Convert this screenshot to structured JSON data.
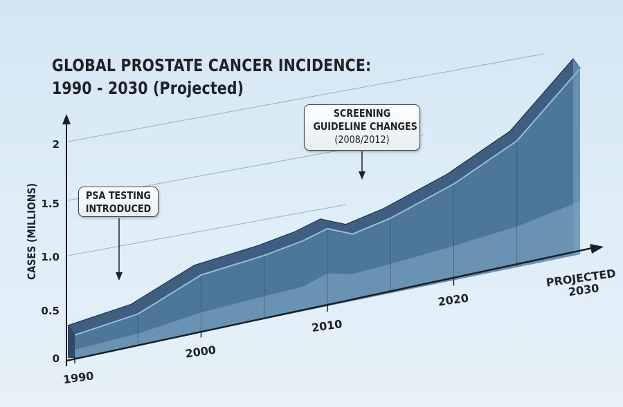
{
  "chart_data": {
    "type": "area",
    "title": "GLOBAL PROSTATE CANCER INCIDENCE:",
    "subtitle": "1990 - 2030 (Projected)",
    "ylabel": "CASES (MILLIONS)",
    "xlabel": "",
    "ylim": [
      0,
      2.5
    ],
    "y_ticks": [
      "0",
      "0.5",
      "1.0",
      "1.5",
      "2"
    ],
    "x_ticks": [
      {
        "year": 1990,
        "label": "1990"
      },
      {
        "year": 2000,
        "label": "2000"
      },
      {
        "year": 2010,
        "label": "2010"
      },
      {
        "year": 2020,
        "label": "2020"
      },
      {
        "year": 2030,
        "label": "PROJECTED",
        "label2": "2030"
      }
    ],
    "grid": "diagonal",
    "series": [
      {
        "x": [
          1990,
          1995,
          2000,
          2005,
          2008,
          2010,
          2012,
          2015,
          2020,
          2025,
          2030
        ],
        "values": [
          0.28,
          0.38,
          0.7,
          0.78,
          0.86,
          0.95,
          0.82,
          0.92,
          1.18,
          1.55,
          2.28
        ]
      },
      {
        "x": [
          1990,
          1995,
          2000,
          2005,
          2008,
          2010,
          2012,
          2015,
          2020,
          2025,
          2030
        ],
        "values": [
          0.1,
          0.14,
          0.24,
          0.28,
          0.3,
          0.4,
          0.33,
          0.36,
          0.42,
          0.5,
          0.65
        ]
      }
    ],
    "annotations": [
      {
        "lines": [
          "PSA TESTING",
          "INTRODUCED"
        ],
        "year": 1994
      },
      {
        "lines": [
          "SCREENING",
          "GUIDELINE CHANGES"
        ],
        "sub": "(2008/2012)",
        "year": 2012.5
      }
    ],
    "colors": {
      "area_main": "#4d7799",
      "area_lower": "#6e96b6",
      "top_band": "#3e5f7f",
      "side_face": "#2f4a66",
      "right_face": "#7aa4c6",
      "axis": "#1a1f26",
      "grid": "#8e9fae"
    }
  }
}
